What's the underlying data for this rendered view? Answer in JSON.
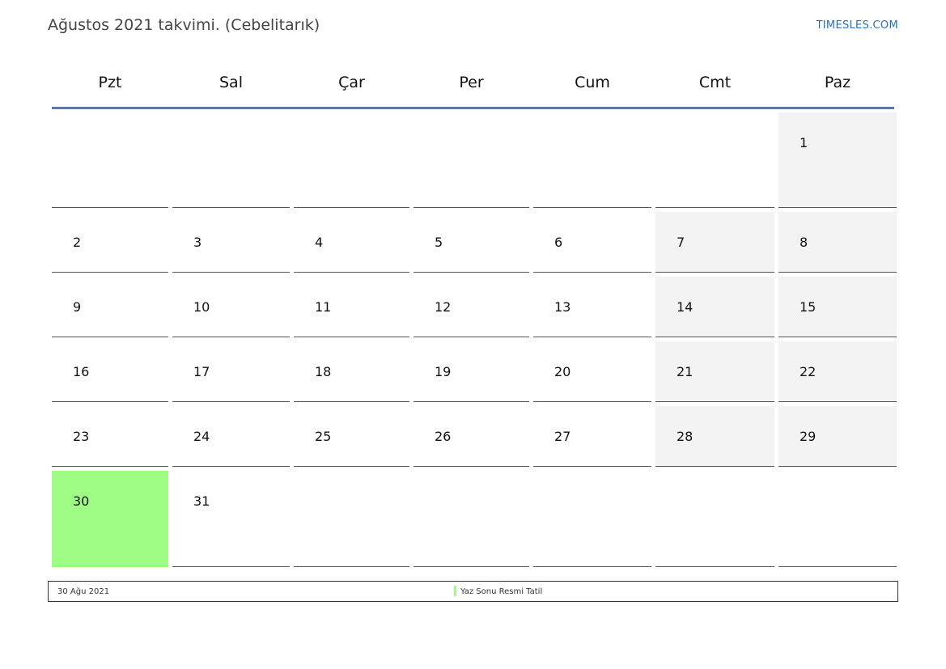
{
  "header": {
    "title": "Ağustos 2021 takvimi. (Cebelitarık)",
    "brand": "TIMESLES.COM"
  },
  "calendar": {
    "weekdays": [
      "Pzt",
      "Sal",
      "Çar",
      "Per",
      "Cum",
      "Cmt",
      "Paz"
    ],
    "weeks": [
      [
        "",
        "",
        "",
        "",
        "",
        "",
        "1"
      ],
      [
        "2",
        "3",
        "4",
        "5",
        "6",
        "7",
        "8"
      ],
      [
        "9",
        "10",
        "11",
        "12",
        "13",
        "14",
        "15"
      ],
      [
        "16",
        "17",
        "18",
        "19",
        "20",
        "21",
        "22"
      ],
      [
        "23",
        "24",
        "25",
        "26",
        "27",
        "28",
        "29"
      ],
      [
        "30",
        "31",
        "",
        "",
        "",
        "",
        ""
      ]
    ],
    "holiday_day": "30",
    "colors": {
      "weekend": "#f3f3f3",
      "holiday": "#9efc85",
      "header_rule": "#5b7a9d",
      "brand": "#2a6fb5"
    }
  },
  "legend": {
    "date": "30 Ağu 2021",
    "name": "Yaz Sonu Resmi Tatil"
  }
}
